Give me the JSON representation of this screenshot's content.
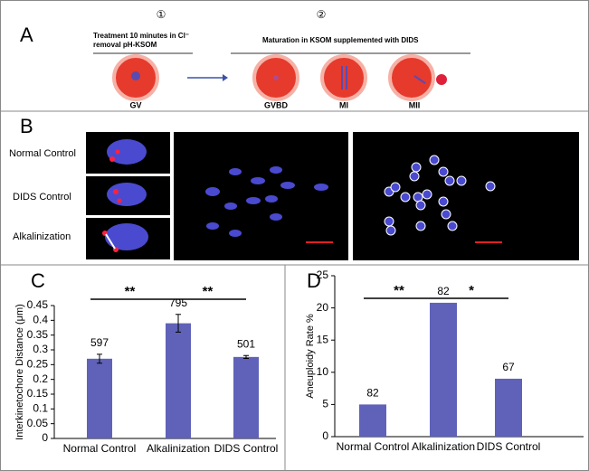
{
  "panel_a": {
    "letter": "A",
    "step1": "①",
    "step2": "②",
    "treatment_line1": "Treatment 10 minutes  in Cl⁻",
    "treatment_line2": "removal      pH-KSOM",
    "maturation": "Maturation in KSOM supplemented with DIDS",
    "stages": [
      "GV",
      "GVBD",
      "MI",
      "MII"
    ]
  },
  "panel_b": {
    "letter": "B",
    "rows": [
      "Normal Control",
      "DIDS Control",
      "Alkalinization"
    ]
  },
  "chart_data": [
    {
      "type": "bar",
      "panel": "C",
      "ylabel": "Interkinetochore Distance (μm)",
      "categories": [
        "Normal Control",
        "Alkalinization",
        "DIDS Control"
      ],
      "values": [
        0.27,
        0.39,
        0.276
      ],
      "errors": [
        0.015,
        0.03,
        0.005
      ],
      "n": [
        597,
        795,
        501
      ],
      "significance": [
        "**",
        "**"
      ],
      "color": "#5f62b8",
      "ylim": [
        0,
        0.45
      ],
      "yticks": [
        0,
        0.05,
        0.1,
        0.15,
        0.2,
        0.25,
        0.3,
        0.35,
        0.4,
        0.45
      ]
    },
    {
      "type": "bar",
      "panel": "D",
      "ylabel": "Aneuploidy Rate %",
      "categories": [
        "Normal Control",
        "Alkalinization",
        "DIDS Control"
      ],
      "values": [
        5,
        20.8,
        9
      ],
      "n": [
        82,
        82,
        67
      ],
      "significance": [
        "**",
        "*"
      ],
      "color": "#5f62b8",
      "ylim": [
        0,
        25
      ],
      "yticks": [
        0,
        5,
        10,
        15,
        20,
        25
      ]
    }
  ]
}
